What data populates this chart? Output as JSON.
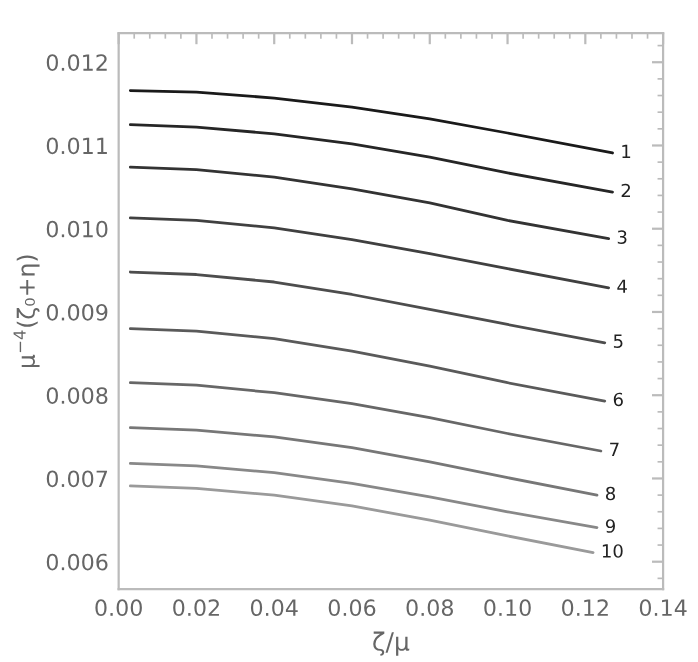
{
  "chart_data": {
    "type": "line",
    "xlabel": "ζ/μ",
    "ylabel": "μ$^{−4}$(ζ₀+η)",
    "xlim": [
      0.0,
      0.14
    ],
    "ylim": [
      0.00567,
      0.01235
    ],
    "xticks": [
      {
        "value": 0.0,
        "label": "0.00"
      },
      {
        "value": 0.02,
        "label": "0.02"
      },
      {
        "value": 0.04,
        "label": "0.04"
      },
      {
        "value": 0.06,
        "label": "0.06"
      },
      {
        "value": 0.08,
        "label": "0.08"
      },
      {
        "value": 0.1,
        "label": "0.10"
      },
      {
        "value": 0.12,
        "label": "0.12"
      },
      {
        "value": 0.14,
        "label": "0.14"
      }
    ],
    "yticks": [
      0.006,
      0.007,
      0.008,
      0.009,
      {
        "value": 0.01,
        "label": "0.010"
      },
      0.011,
      0.012
    ],
    "grid": false,
    "legend": false,
    "marker": "none",
    "line_style": "solid",
    "series": [
      {
        "name": "1",
        "color": "#1a1a1a",
        "x": [
          0.003,
          0.02,
          0.04,
          0.06,
          0.08,
          0.1,
          0.127
        ],
        "values": [
          0.01166,
          0.01164,
          0.01157,
          0.01146,
          0.01132,
          0.01115,
          0.01091
        ]
      },
      {
        "name": "2",
        "color": "#262626",
        "x": [
          0.003,
          0.02,
          0.04,
          0.06,
          0.08,
          0.1,
          0.127
        ],
        "values": [
          0.01125,
          0.01122,
          0.01114,
          0.01102,
          0.01086,
          0.01067,
          0.01044
        ]
      },
      {
        "name": "3",
        "color": "#333333",
        "x": [
          0.003,
          0.02,
          0.04,
          0.06,
          0.08,
          0.1,
          0.126
        ],
        "values": [
          0.01074,
          0.01071,
          0.01062,
          0.01048,
          0.01031,
          0.0101,
          0.00988
        ]
      },
      {
        "name": "4",
        "color": "#404040",
        "x": [
          0.003,
          0.02,
          0.04,
          0.06,
          0.08,
          0.1,
          0.126
        ],
        "values": [
          0.01013,
          0.0101,
          0.01001,
          0.00987,
          0.0097,
          0.00952,
          0.00929
        ]
      },
      {
        "name": "5",
        "color": "#4d4d4d",
        "x": [
          0.003,
          0.02,
          0.04,
          0.06,
          0.08,
          0.1,
          0.125
        ],
        "values": [
          0.00948,
          0.00945,
          0.00936,
          0.00921,
          0.00903,
          0.00885,
          0.00863
        ]
      },
      {
        "name": "6",
        "color": "#5a5a5a",
        "x": [
          0.003,
          0.02,
          0.04,
          0.06,
          0.08,
          0.1,
          0.125
        ],
        "values": [
          0.0088,
          0.00877,
          0.00868,
          0.00853,
          0.00835,
          0.00815,
          0.00793
        ]
      },
      {
        "name": "7",
        "color": "#676767",
        "x": [
          0.003,
          0.02,
          0.04,
          0.06,
          0.08,
          0.1,
          0.124
        ],
        "values": [
          0.00815,
          0.00812,
          0.00803,
          0.0079,
          0.00773,
          0.00754,
          0.00733
        ]
      },
      {
        "name": "8",
        "color": "#777777",
        "x": [
          0.003,
          0.02,
          0.04,
          0.06,
          0.08,
          0.1,
          0.123
        ],
        "values": [
          0.00761,
          0.00758,
          0.0075,
          0.00737,
          0.0072,
          0.00701,
          0.0068
        ]
      },
      {
        "name": "9",
        "color": "#888888",
        "x": [
          0.003,
          0.02,
          0.04,
          0.06,
          0.08,
          0.1,
          0.123
        ],
        "values": [
          0.00718,
          0.00715,
          0.00707,
          0.00694,
          0.00678,
          0.0066,
          0.00641
        ]
      },
      {
        "name": "10",
        "color": "#9a9a9a",
        "x": [
          0.003,
          0.02,
          0.04,
          0.06,
          0.08,
          0.1,
          0.122
        ],
        "values": [
          0.00691,
          0.00688,
          0.0068,
          0.00667,
          0.0065,
          0.00631,
          0.00611
        ]
      }
    ]
  }
}
